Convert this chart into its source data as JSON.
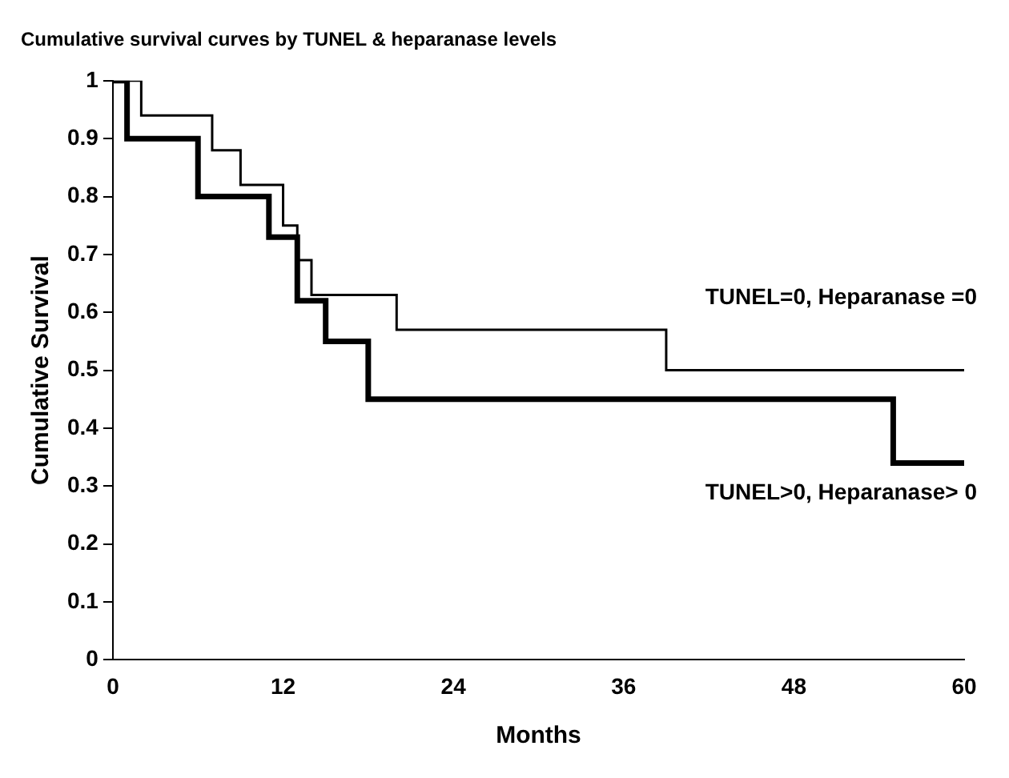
{
  "chart_data": {
    "type": "step",
    "title": "Cumulative survival curves by TUNEL & heparanase levels",
    "xlabel": "Months",
    "ylabel": "Cumulative Survival",
    "series": [
      {
        "name": "TUNEL=0, Heparanase =0",
        "color": "#000000",
        "x": [
          0,
          2,
          7,
          9,
          12,
          13,
          14,
          20,
          39,
          60
        ],
        "values": [
          1,
          0.94,
          0.88,
          0.82,
          0.75,
          0.69,
          0.63,
          0.57,
          0.5,
          0.5
        ]
      },
      {
        "name": "TUNEL>0, Heparanase> 0",
        "color": "#000000",
        "x": [
          0,
          1,
          6,
          11,
          13,
          15,
          18,
          55,
          60
        ],
        "values": [
          1,
          0.9,
          0.8,
          0.73,
          0.62,
          0.55,
          0.45,
          0.34,
          0.34
        ]
      }
    ],
    "xlim": [
      0,
      60
    ],
    "xticks": [
      0,
      12,
      24,
      36,
      48,
      60
    ],
    "ylim": [
      0,
      1
    ],
    "yticks": [
      0,
      0.1,
      0.2,
      0.3,
      0.4,
      0.5,
      0.6,
      0.7,
      0.8,
      0.9,
      1
    ],
    "grid": false,
    "legend": false
  }
}
